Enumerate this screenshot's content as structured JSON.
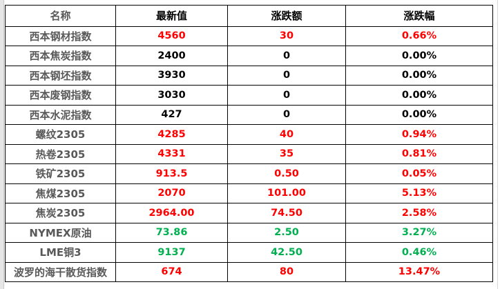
{
  "headers": [
    "名称",
    "最新值",
    "涨跌额",
    "涨跌幅"
  ],
  "colors": {
    "up": "#ff0000",
    "flat": "#000000",
    "green": "#00b050"
  },
  "rows": [
    {
      "name": "西本钢材指数",
      "latest": "4560",
      "change": "30",
      "pct": "0.66%",
      "latest_color": "red",
      "change_color": "red",
      "pct_color": "red"
    },
    {
      "name": "西本焦炭指数",
      "latest": "2400",
      "change": "0",
      "pct": "0.00%",
      "latest_color": "black",
      "change_color": "black",
      "pct_color": "black"
    },
    {
      "name": "西本钢坯指数",
      "latest": "3930",
      "change": "0",
      "pct": "0.00%",
      "latest_color": "black",
      "change_color": "black",
      "pct_color": "black"
    },
    {
      "name": "西本废钢指数",
      "latest": "3030",
      "change": "0",
      "pct": "0.00%",
      "latest_color": "black",
      "change_color": "black",
      "pct_color": "black"
    },
    {
      "name": "西本水泥指数",
      "latest": "427",
      "change": "0",
      "pct": "0.00%",
      "latest_color": "black",
      "change_color": "black",
      "pct_color": "black"
    },
    {
      "name": "螺纹2305",
      "latest": "4285",
      "change": "40",
      "pct": "0.94%",
      "latest_color": "red",
      "change_color": "red",
      "pct_color": "red"
    },
    {
      "name": "热卷2305",
      "latest": "4331",
      "change": "35",
      "pct": "0.81%",
      "latest_color": "red",
      "change_color": "red",
      "pct_color": "red"
    },
    {
      "name": "铁矿2305",
      "latest": "913.5",
      "change": "0.50",
      "pct": "0.05%",
      "latest_color": "red",
      "change_color": "red",
      "pct_color": "red"
    },
    {
      "name": "焦煤2305",
      "latest": "2070",
      "change": "101.00",
      "pct": "5.13%",
      "latest_color": "red",
      "change_color": "red",
      "pct_color": "red"
    },
    {
      "name": "焦炭2305",
      "latest": "2964.00",
      "change": "74.50",
      "pct": "2.58%",
      "latest_color": "red",
      "change_color": "red",
      "pct_color": "red"
    },
    {
      "name": "NYMEX原油",
      "latest": "73.86",
      "change": "2.50",
      "pct": "3.27%",
      "latest_color": "green",
      "change_color": "green",
      "pct_color": "green"
    },
    {
      "name": "LME铜3",
      "latest": "9137",
      "change": "42.50",
      "pct": "0.46%",
      "latest_color": "green",
      "change_color": "green",
      "pct_color": "green"
    },
    {
      "name": "波罗的海干散货指数",
      "latest": "674",
      "change": "80",
      "pct": "13.47%",
      "latest_color": "red",
      "change_color": "red",
      "pct_color": "red"
    }
  ]
}
